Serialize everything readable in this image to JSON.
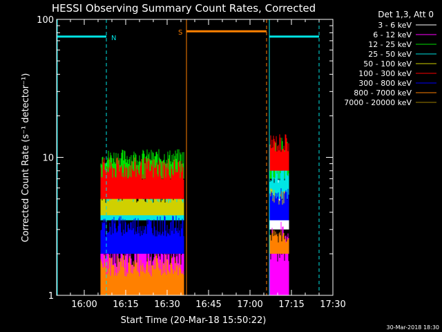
{
  "chart_data": {
    "type": "line",
    "title": "HESSI Observing Summary Count Rates, Corrected",
    "xlabel": "Start Time (20-Mar-18 15:50:22)",
    "ylabel": "Corrected Count Rate (s⁻¹ detector⁻¹)",
    "yscale": "log",
    "ylim": [
      1,
      100
    ],
    "xlim": [
      "15:50",
      "17:30"
    ],
    "x_ticks": [
      "16:00",
      "16:15",
      "16:30",
      "16:45",
      "17:00",
      "17:15",
      "17:30"
    ],
    "y_ticks": [
      "1",
      "10",
      "100"
    ],
    "grid": false,
    "legend_position": "top-right",
    "legend_header": "Det 1,3, Att 0",
    "footer_date": "30-Mar-2018 18:30",
    "flags": [
      {
        "label": "N",
        "start": "15:50",
        "end": "16:08",
        "value": 75,
        "color": "#00e5e5"
      },
      {
        "label": "S",
        "start": "16:37",
        "end": "17:06",
        "value": 82,
        "color": "#ff8000"
      },
      {
        "label": "",
        "start": "17:07",
        "end": "17:25",
        "value": 75,
        "color": "#00e5e5"
      }
    ],
    "markers": [
      {
        "time": "16:08",
        "color": "#00e5e5",
        "style": "dashed"
      },
      {
        "time": "16:37",
        "color": "#ff8000",
        "style": "solid"
      },
      {
        "time": "17:06",
        "color": "#ff8000",
        "style": "dashed"
      },
      {
        "time": "17:07",
        "color": "#00e5e5",
        "style": "solid"
      },
      {
        "time": "17:25",
        "color": "#00e5e5",
        "style": "dashed"
      }
    ],
    "series": [
      {
        "name": "3 - 6 keV",
        "color": "#ffffff",
        "segments": [
          {
            "start": "17:07",
            "end": "17:14",
            "low": 3.0,
            "high": 7.0
          }
        ]
      },
      {
        "name": "6 - 12 keV",
        "color": "#ff00ff",
        "segments": [
          {
            "start": "16:06",
            "end": "16:36",
            "low": 1.0,
            "high": 2.8
          },
          {
            "start": "17:07",
            "end": "17:14",
            "low": 1.0,
            "high": 3.5
          }
        ]
      },
      {
        "name": "12 - 25 keV",
        "color": "#00e000",
        "segments": [
          {
            "start": "16:06",
            "end": "16:36",
            "low": 7.0,
            "high": 11.5
          },
          {
            "start": "17:07",
            "end": "17:14",
            "low": 7.0,
            "high": 14.0
          }
        ]
      },
      {
        "name": "25 - 50 keV",
        "color": "#00e5e5",
        "segments": [
          {
            "start": "16:06",
            "end": "16:36",
            "low": 3.5,
            "high": 6.0
          },
          {
            "start": "17:07",
            "end": "17:14",
            "low": 5.0,
            "high": 9.0
          }
        ]
      },
      {
        "name": "50 - 100 keV",
        "color": "#d0d000",
        "segments": [
          {
            "start": "16:06",
            "end": "16:36",
            "low": 3.8,
            "high": 6.0
          },
          {
            "start": "17:07",
            "end": "17:14",
            "low": 3.5,
            "high": 6.0
          }
        ]
      },
      {
        "name": "100 - 300 keV",
        "color": "#ff0000",
        "segments": [
          {
            "start": "16:06",
            "end": "16:36",
            "low": 5.0,
            "high": 10.0
          },
          {
            "start": "17:07",
            "end": "17:14",
            "low": 8.0,
            "high": 15.0
          }
        ]
      },
      {
        "name": "300 - 800 keV",
        "color": "#0000ff",
        "segments": [
          {
            "start": "16:06",
            "end": "16:36",
            "low": 2.0,
            "high": 3.8
          },
          {
            "start": "17:07",
            "end": "17:14",
            "low": 3.5,
            "high": 6.0
          }
        ]
      },
      {
        "name": "800 - 7000 keV",
        "color": "#ff8000",
        "segments": [
          {
            "start": "16:06",
            "end": "16:36",
            "low": 1.0,
            "high": 2.0
          },
          {
            "start": "17:07",
            "end": "17:14",
            "low": 2.0,
            "high": 3.0
          }
        ]
      },
      {
        "name": "7000 - 20000 keV",
        "color": "#a08000",
        "segments": []
      }
    ]
  }
}
